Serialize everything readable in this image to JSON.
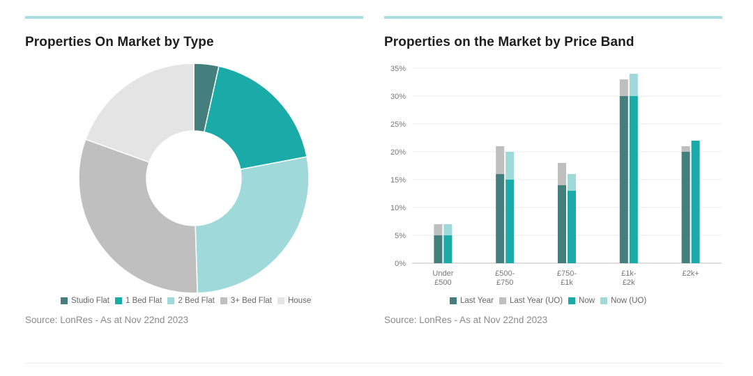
{
  "left_panel": {
    "title": "Properties On Market by Type",
    "source": "Source: LonRes - As at Nov 22nd 2023"
  },
  "right_panel": {
    "title": "Properties on the Market by Price Band",
    "source": "Source: LonRes - As at Nov 22nd 2023"
  },
  "colors": {
    "accent_bar": "#a9dde0",
    "studio": "#447f7d",
    "one_bed": "#1aaba9",
    "two_bed": "#9fd9da",
    "three_bed": "#bfbfbf",
    "house": "#e4e4e4"
  },
  "chart_data": [
    {
      "type": "pie",
      "title": "Properties On Market by Type",
      "donut": true,
      "categories": [
        "Studio Flat",
        "1 Bed Flat",
        "2 Bed Flat",
        "3+ Bed Flat",
        "House"
      ],
      "values": [
        3.5,
        18.5,
        27.5,
        31,
        19.5
      ],
      "colors": [
        "#447f7d",
        "#1aaba9",
        "#9fd9da",
        "#bfbfbf",
        "#e4e4e4"
      ],
      "legend": "bottom"
    },
    {
      "type": "bar",
      "stacked": true,
      "title": "Properties on the Market by Price Band",
      "categories": [
        [
          "Under",
          "£500"
        ],
        [
          "£500-",
          "£750"
        ],
        [
          "£750-",
          "£1k"
        ],
        [
          "£1k-",
          "£2k"
        ],
        [
          "£2k+"
        ]
      ],
      "groups": [
        {
          "name": "Last Year",
          "series": [
            {
              "name": "Last Year",
              "values": [
                5,
                16,
                14,
                30,
                20
              ],
              "color": "#447f7d"
            },
            {
              "name": "Last Year (UO)",
              "values": [
                2,
                5,
                4,
                3,
                1
              ],
              "color": "#bfbfbf"
            }
          ]
        },
        {
          "name": "Now",
          "series": [
            {
              "name": "Now",
              "values": [
                5,
                15,
                13,
                30,
                22
              ],
              "color": "#1aaba9"
            },
            {
              "name": "Now (UO)",
              "values": [
                2,
                5,
                3,
                4,
                0
              ],
              "color": "#9fd9da"
            }
          ]
        }
      ],
      "legend_entries": [
        {
          "name": "Last Year",
          "color": "#447f7d"
        },
        {
          "name": "Last Year (UO)",
          "color": "#bfbfbf"
        },
        {
          "name": "Now",
          "color": "#1aaba9"
        },
        {
          "name": "Now (UO)",
          "color": "#9fd9da"
        }
      ],
      "yticks": [
        "0%",
        "5%",
        "10%",
        "15%",
        "20%",
        "25%",
        "30%",
        "35%"
      ],
      "ylim": [
        0,
        35
      ],
      "grid": true,
      "legend": "bottom"
    }
  ]
}
